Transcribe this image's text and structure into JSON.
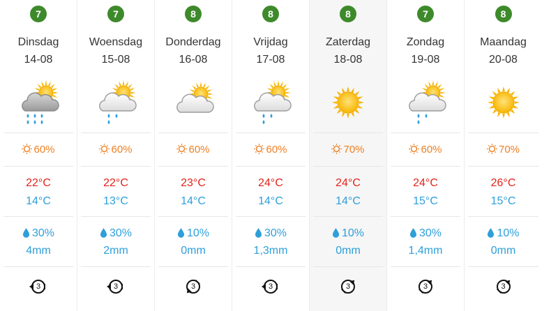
{
  "colors": {
    "score_badge": "#3e8a2b",
    "sun": "#ee7f22",
    "temp_max": "#e2231a",
    "temp_min": "#2e9fd9",
    "rain": "#2e9fd9"
  },
  "days": [
    {
      "score": "7",
      "name": "Dinsdag",
      "date": "14-08",
      "icon": "partly-cloudy-heavy-rain-icon",
      "sun": "60%",
      "tmax": "22°C",
      "tmin": "14°C",
      "rain_chance": "30%",
      "rain_amount": "4mm",
      "wind_bft": "3",
      "wind_dir": "west",
      "weekend": false
    },
    {
      "score": "7",
      "name": "Woensdag",
      "date": "15-08",
      "icon": "partly-cloudy-rain-icon",
      "sun": "60%",
      "tmax": "22°C",
      "tmin": "13°C",
      "rain_chance": "30%",
      "rain_amount": "2mm",
      "wind_bft": "3",
      "wind_dir": "west",
      "weekend": false
    },
    {
      "score": "8",
      "name": "Donderdag",
      "date": "16-08",
      "icon": "partly-cloudy-icon",
      "sun": "60%",
      "tmax": "23°C",
      "tmin": "14°C",
      "rain_chance": "10%",
      "rain_amount": "0mm",
      "wind_bft": "3",
      "wind_dir": "southwest",
      "weekend": false
    },
    {
      "score": "8",
      "name": "Vrijdag",
      "date": "17-08",
      "icon": "partly-cloudy-rain-icon",
      "sun": "60%",
      "tmax": "24°C",
      "tmin": "14°C",
      "rain_chance": "30%",
      "rain_amount": "1,3mm",
      "wind_bft": "3",
      "wind_dir": "west",
      "weekend": false
    },
    {
      "score": "8",
      "name": "Zaterdag",
      "date": "18-08",
      "icon": "sunny-icon",
      "sun": "70%",
      "tmax": "24°C",
      "tmin": "14°C",
      "rain_chance": "10%",
      "rain_amount": "0mm",
      "wind_bft": "3",
      "wind_dir": "northeast",
      "weekend": true
    },
    {
      "score": "7",
      "name": "Zondag",
      "date": "19-08",
      "icon": "partly-cloudy-rain-icon",
      "sun": "60%",
      "tmax": "24°C",
      "tmin": "15°C",
      "rain_chance": "30%",
      "rain_amount": "1,4mm",
      "wind_bft": "3",
      "wind_dir": "northeast",
      "weekend": false
    },
    {
      "score": "8",
      "name": "Maandag",
      "date": "20-08",
      "icon": "sunny-icon",
      "sun": "70%",
      "tmax": "26°C",
      "tmin": "15°C",
      "rain_chance": "10%",
      "rain_amount": "0mm",
      "wind_bft": "3",
      "wind_dir": "northeast",
      "weekend": false
    }
  ]
}
